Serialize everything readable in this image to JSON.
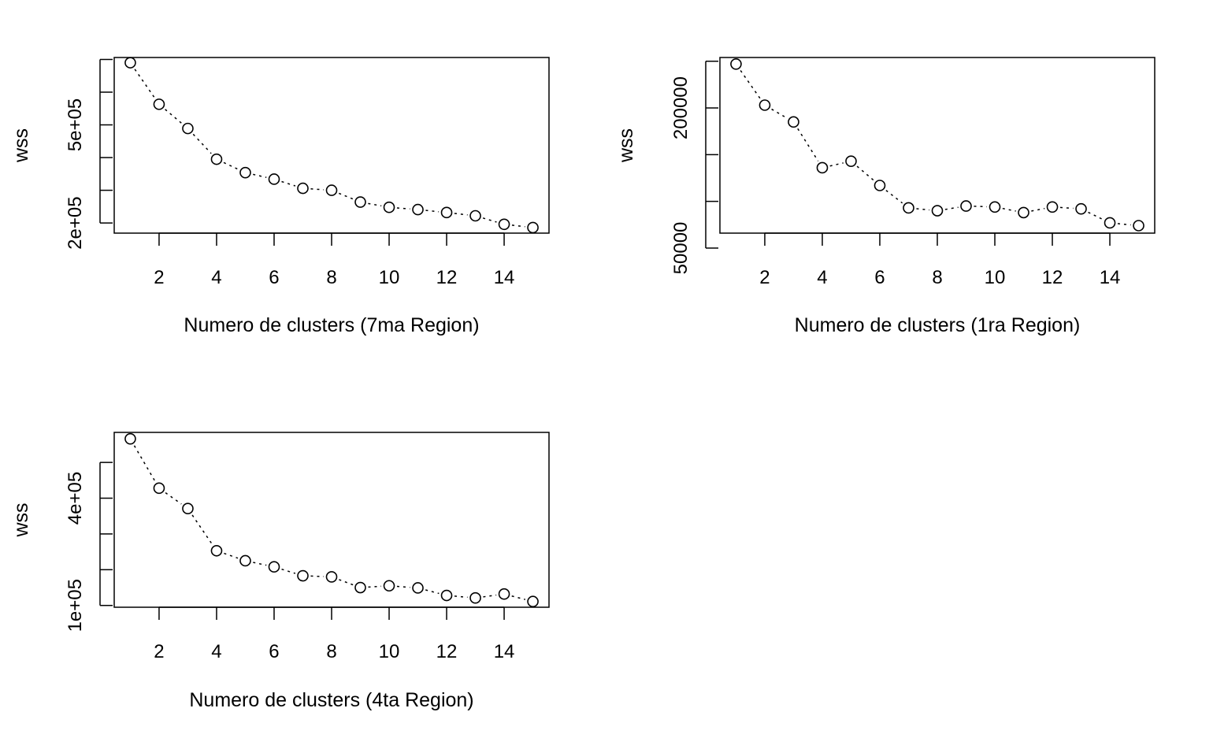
{
  "chart_data": [
    {
      "type": "line",
      "style": "overplotted points with dotted connecting line (R type='b')",
      "xlabel": "Numero de clusters (7ma Region)",
      "ylabel": "wss",
      "x": [
        1,
        2,
        3,
        4,
        5,
        6,
        7,
        8,
        9,
        10,
        11,
        12,
        13,
        14,
        15
      ],
      "y": [
        690000,
        563000,
        489000,
        395000,
        354000,
        334000,
        306000,
        300000,
        264000,
        248000,
        241000,
        232000,
        222000,
        196000,
        186000
      ],
      "xlim": [
        0.44,
        15.56
      ],
      "ylim": [
        169000,
        706000
      ],
      "xticks": [
        2,
        4,
        6,
        8,
        10,
        12,
        14
      ],
      "xtick_labels": [
        "2",
        "4",
        "6",
        "8",
        "10",
        "12",
        "14"
      ],
      "yticks": [
        200000,
        300000,
        400000,
        500000,
        600000,
        700000
      ],
      "ytick_labels": [
        "2e+05",
        "",
        "",
        "5e+05",
        "",
        ""
      ],
      "grid": false,
      "legend": "none"
    },
    {
      "type": "line",
      "style": "overplotted points with dotted connecting line (R type='b')",
      "xlabel": "Numero de clusters (1ra Region)",
      "ylabel": "wss",
      "x": [
        1,
        2,
        3,
        4,
        5,
        6,
        7,
        8,
        9,
        10,
        11,
        12,
        13,
        14,
        15
      ],
      "y": [
        247000,
        203000,
        185000,
        136000,
        143000,
        117000,
        93000,
        90000,
        95000,
        94000,
        88000,
        94000,
        92000,
        77000,
        74000
      ],
      "xlim": [
        0.44,
        15.56
      ],
      "ylim": [
        66000,
        254000
      ],
      "xticks": [
        2,
        4,
        6,
        8,
        10,
        12,
        14
      ],
      "xtick_labels": [
        "2",
        "4",
        "6",
        "8",
        "10",
        "12",
        "14"
      ],
      "yticks": [
        50000,
        100000,
        150000,
        200000,
        250000
      ],
      "ytick_labels": [
        "50000",
        "",
        "",
        "200000",
        ""
      ],
      "grid": false,
      "legend": "none"
    },
    {
      "type": "line",
      "style": "overplotted points with dotted connecting line (R type='b')",
      "xlabel": "Numero de clusters (4ta Region)",
      "ylabel": "wss",
      "x": [
        1,
        2,
        3,
        4,
        5,
        6,
        7,
        8,
        9,
        10,
        11,
        12,
        13,
        14,
        15
      ],
      "y": [
        566000,
        428000,
        371000,
        253000,
        225000,
        208000,
        183000,
        180000,
        150000,
        155000,
        149000,
        128000,
        121000,
        132000,
        111000
      ],
      "xlim": [
        0.44,
        15.56
      ],
      "ylim": [
        95000,
        584000
      ],
      "xticks": [
        2,
        4,
        6,
        8,
        10,
        12,
        14
      ],
      "xtick_labels": [
        "2",
        "4",
        "6",
        "8",
        "10",
        "12",
        "14"
      ],
      "yticks": [
        100000,
        200000,
        300000,
        400000,
        500000
      ],
      "ytick_labels": [
        "1e+05",
        "",
        "",
        "4e+05",
        ""
      ],
      "grid": false,
      "legend": "none"
    }
  ]
}
